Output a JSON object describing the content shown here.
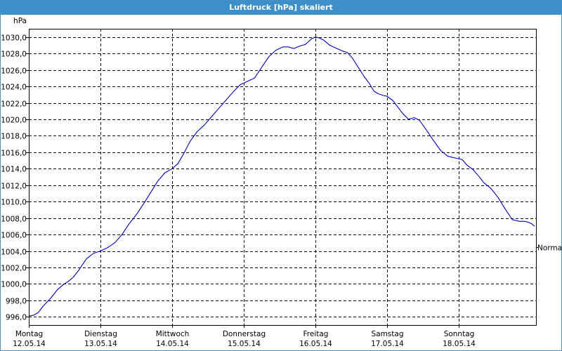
{
  "window": {
    "title": "Luftdruck [hPa] skaliert"
  },
  "chart_data": {
    "type": "line",
    "title": "Luftdruck [hPa] skaliert",
    "ylabel": "hPa",
    "ylim": [
      995,
      1031
    ],
    "yticks": [
      996,
      998,
      1000,
      1002,
      1004,
      1006,
      1008,
      1010,
      1012,
      1014,
      1016,
      1018,
      1020,
      1022,
      1024,
      1026,
      1028,
      1030
    ],
    "ytick_labels": [
      "996,0",
      "998,0",
      "1000,0",
      "1002,0",
      "1004,0",
      "1006,0",
      "1008,0",
      "1010,0",
      "1012,0",
      "1014,0",
      "1016,0",
      "1018,0",
      "1020,0",
      "1022,0",
      "1024,0",
      "1026,0",
      "1028,0",
      "1030,0"
    ],
    "xlim": [
      0,
      7.08
    ],
    "xticks": [
      {
        "pos": 0,
        "day": "Montag",
        "date": "12.05.14"
      },
      {
        "pos": 1,
        "day": "Dienstag",
        "date": "13.05.14"
      },
      {
        "pos": 2,
        "day": "Mittwoch",
        "date": "14.05.14"
      },
      {
        "pos": 3,
        "day": "Donnerstag",
        "date": "15.05.14"
      },
      {
        "pos": 4,
        "day": "Freitag",
        "date": "16.05.14"
      },
      {
        "pos": 5,
        "day": "Samstag",
        "date": "17.05.14"
      },
      {
        "pos": 6,
        "day": "Sonntag",
        "date": "18.05.14"
      }
    ],
    "reference_line": {
      "label": "Normal",
      "value": 1004.5
    },
    "grid": true,
    "series": [
      {
        "color": "#0000cc",
        "x": [
          0,
          0.07,
          0.13,
          0.2,
          0.3,
          0.4,
          0.48,
          0.55,
          0.62,
          0.7,
          0.8,
          0.9,
          1.0,
          1.1,
          1.2,
          1.3,
          1.4,
          1.5,
          1.6,
          1.7,
          1.8,
          1.9,
          2.0,
          2.08,
          2.16,
          2.25,
          2.35,
          2.45,
          2.55,
          2.65,
          2.75,
          2.85,
          2.95,
          3.05,
          3.15,
          3.25,
          3.35,
          3.45,
          3.55,
          3.62,
          3.7,
          3.78,
          3.86,
          3.95,
          4.0,
          4.05,
          4.12,
          4.2,
          4.3,
          4.38,
          4.45,
          4.52,
          4.6,
          4.68,
          4.75,
          4.82,
          4.88,
          4.95,
          5.0,
          5.08,
          5.15,
          5.22,
          5.3,
          5.38,
          5.45,
          5.55,
          5.65,
          5.75,
          5.85,
          5.95,
          6.05,
          6.12,
          6.2,
          6.28,
          6.35,
          6.45,
          6.55,
          6.65,
          6.75,
          6.85,
          6.92,
          6.97,
          7.02,
          7.06
        ],
        "values": [
          996.1,
          996.2,
          996.5,
          997.3,
          998.2,
          999.3,
          999.9,
          1000.3,
          1000.8,
          1001.7,
          1003.0,
          1003.7,
          1004.0,
          1004.4,
          1005.0,
          1006.0,
          1007.3,
          1008.4,
          1009.7,
          1011.1,
          1012.5,
          1013.5,
          1014.0,
          1014.6,
          1015.8,
          1017.3,
          1018.5,
          1019.3,
          1020.3,
          1021.3,
          1022.3,
          1023.3,
          1024.2,
          1024.6,
          1025.0,
          1026.3,
          1027.6,
          1028.4,
          1028.8,
          1028.8,
          1028.6,
          1028.9,
          1029.1,
          1029.8,
          1030.0,
          1029.9,
          1029.6,
          1029.0,
          1028.6,
          1028.3,
          1028.1,
          1027.4,
          1026.3,
          1025.2,
          1024.4,
          1023.4,
          1023.1,
          1022.9,
          1022.8,
          1022.3,
          1021.5,
          1020.7,
          1020.0,
          1020.2,
          1019.9,
          1018.7,
          1017.4,
          1016.2,
          1015.5,
          1015.3,
          1015.1,
          1014.4,
          1013.9,
          1013.1,
          1012.3,
          1011.6,
          1010.5,
          1009.1,
          1007.8,
          1007.6,
          1007.6,
          1007.5,
          1007.3,
          1007.0
        ]
      }
    ]
  }
}
